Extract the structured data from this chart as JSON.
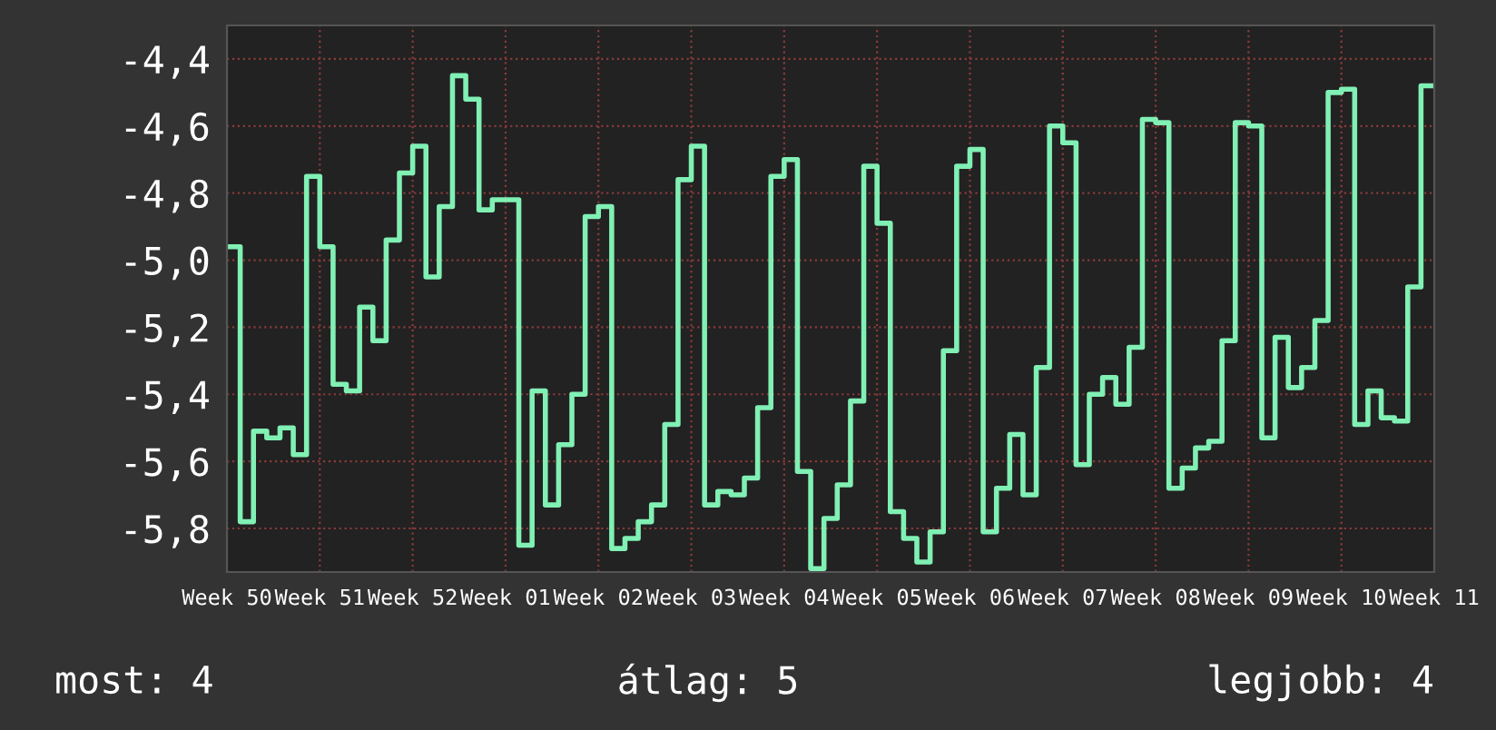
{
  "chart_data": {
    "type": "step",
    "categories": [
      "Week 50",
      null,
      null,
      null,
      null,
      null,
      null,
      "Week 51",
      null,
      null,
      null,
      null,
      null,
      null,
      "Week 52",
      null,
      null,
      null,
      null,
      null,
      null,
      "Week 01",
      null,
      null,
      null,
      null,
      null,
      null,
      "Week 02",
      null,
      null,
      null,
      null,
      null,
      null,
      "Week 03",
      null,
      null,
      null,
      null,
      null,
      null,
      "Week 04",
      null,
      null,
      null,
      null,
      null,
      null,
      "Week 05",
      null,
      null,
      null,
      null,
      null,
      null,
      "Week 06",
      null,
      null,
      null,
      null,
      null,
      null,
      "Week 07",
      null,
      null,
      null,
      null,
      null,
      null,
      "Week 08",
      null,
      null,
      null,
      null,
      null,
      null,
      "Week 09",
      null,
      null,
      null,
      null,
      null,
      null,
      "Week 10",
      null,
      null,
      null,
      null,
      null,
      null,
      "Week 11"
    ],
    "series": [
      {
        "color": "#80f0b4",
        "values": [
          -4.96,
          -5.78,
          -5.51,
          -5.53,
          -5.5,
          -5.58,
          -4.75,
          -4.96,
          -5.37,
          -5.39,
          -5.14,
          -5.24,
          -4.94,
          -4.74,
          -4.66,
          -5.05,
          -4.84,
          -4.45,
          -4.52,
          -4.85,
          -4.82,
          -4.82,
          -5.85,
          -5.39,
          -5.73,
          -5.55,
          -5.4,
          -4.87,
          -4.84,
          -5.86,
          -5.83,
          -5.78,
          -5.73,
          -5.49,
          -4.76,
          -4.66,
          -5.73,
          -5.69,
          -5.7,
          -5.65,
          -5.44,
          -4.75,
          -4.7,
          -5.63,
          -5.92,
          -5.77,
          -5.67,
          -5.42,
          -4.72,
          -4.89,
          -5.75,
          -5.83,
          -5.9,
          -5.81,
          -5.27,
          -4.72,
          -4.67,
          -5.81,
          -5.68,
          -5.52,
          -5.7,
          -5.32,
          -4.6,
          -4.65,
          -5.61,
          -5.4,
          -5.35,
          -5.43,
          -5.26,
          -4.58,
          -4.59,
          -5.68,
          -5.62,
          -5.56,
          -5.54,
          -5.24,
          -4.59,
          -4.6,
          -5.53,
          -5.23,
          -5.38,
          -5.32,
          -5.18,
          -4.5,
          -4.49,
          -5.49,
          -5.39,
          -5.47,
          -5.48,
          -5.08,
          -4.48,
          -4.48
        ]
      }
    ],
    "ylim": [
      -5.93,
      -4.3
    ],
    "yticks": [
      {
        "value": -4.4,
        "label": "-4,4"
      },
      {
        "value": -4.6,
        "label": "-4,6"
      },
      {
        "value": -4.8,
        "label": "-4,8"
      },
      {
        "value": -5.0,
        "label": "-5,0"
      },
      {
        "value": -5.2,
        "label": "-5,2"
      },
      {
        "value": -5.4,
        "label": "-5,4"
      },
      {
        "value": -5.6,
        "label": "-5,6"
      },
      {
        "value": -5.8,
        "label": "-5,8"
      }
    ],
    "grid": true,
    "annotations": [
      "most: 4",
      "átlag: 5",
      "legjobb: 4"
    ]
  }
}
